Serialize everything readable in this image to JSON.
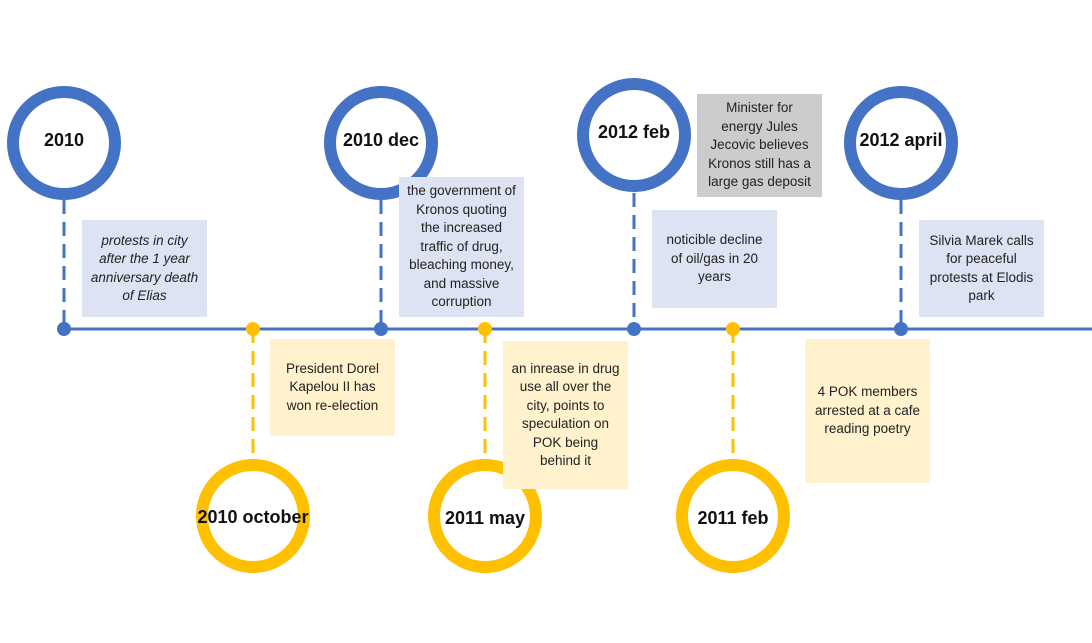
{
  "colors": {
    "blue": "#4472c4",
    "yellow": "#ffc000",
    "blue_note": "#dde3f2",
    "yellow_note": "#fff2cc",
    "grey_note": "#cccccc"
  },
  "events": [
    {
      "id": "2010",
      "label": "2010",
      "side": "top",
      "color": "blue",
      "note": "protests in city after the 1 year anniversary death of Elias"
    },
    {
      "id": "2010-october",
      "label": "2010 october",
      "side": "bottom",
      "color": "yellow",
      "note": "President Dorel Kapelou II has won re-election"
    },
    {
      "id": "2010-dec",
      "label": "2010 dec",
      "side": "top",
      "color": "blue",
      "note": "the government of Kronos quoting the increased traffic of drug, bleaching money, and massive corruption"
    },
    {
      "id": "2011-may",
      "label": "2011 may",
      "side": "bottom",
      "color": "yellow",
      "note": "an inrease in drug use all over the city, points to speculation on POK being behind it"
    },
    {
      "id": "2012-feb",
      "label": "2012 feb",
      "side": "top",
      "color": "blue",
      "note": "noticible decline of oil/gas in 20 years",
      "extra_note": "Minister for energy Jules Jecovic believes Kronos still has a large gas deposit"
    },
    {
      "id": "2011-feb",
      "label": "2011 feb",
      "side": "bottom",
      "color": "yellow",
      "note": ""
    },
    {
      "id": "2012-april",
      "label": "2012 april",
      "side": "top",
      "color": "blue",
      "note": "Silvia Marek calls for peaceful protests at Elodis park"
    },
    {
      "id": "pok-arrest",
      "label": "",
      "side": "bottom",
      "color": "yellow",
      "note": "4 POK members arrested at a cafe reading poetry"
    }
  ]
}
